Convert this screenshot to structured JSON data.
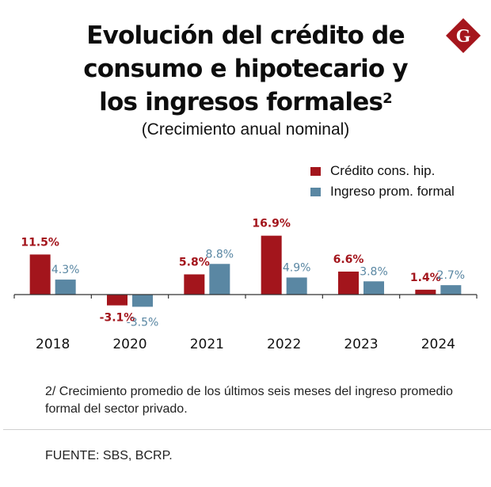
{
  "title": {
    "lines": [
      "Evolución del crédito de",
      "consumo e hipotecario y",
      "los ingresos formales"
    ],
    "superscript": "2"
  },
  "subtitle": "(Crecimiento anual nominal)",
  "logo": {
    "icon": "g-diamond-logo-icon",
    "letter": "G",
    "color": "#a5161d"
  },
  "colors": {
    "credito": "#a3151c",
    "ingreso": "#5a87a3",
    "axis": "#333333"
  },
  "chart_data": {
    "type": "bar",
    "title": "Evolución del crédito de consumo e hipotecario y los ingresos formales",
    "subtitle": "(Crecimiento anual nominal)",
    "xlabel": "",
    "ylabel": "",
    "categories": [
      "2018",
      "2020",
      "2021",
      "2022",
      "2023",
      "2024"
    ],
    "series": [
      {
        "name": "Crédito cons. hip.",
        "color": "#a3151c",
        "values": [
          11.5,
          -3.1,
          5.8,
          16.9,
          6.6,
          1.4
        ],
        "labels": [
          "11.5%",
          "-3.1%",
          "5.8%",
          "16.9%",
          "6.6%",
          "1.4%"
        ]
      },
      {
        "name": "Ingreso prom. formal",
        "color": "#5a87a3",
        "values": [
          4.3,
          -3.5,
          8.8,
          4.9,
          3.8,
          2.7
        ],
        "labels": [
          "4.3%",
          "-3.5%",
          "8.8%",
          "4.9%",
          "3.8%",
          "2.7%"
        ]
      }
    ],
    "ylim": [
      -3.5,
      16.9
    ],
    "grid": false,
    "legend": "top-right"
  },
  "footnote": "2/ Crecimiento promedio de los últimos seis meses del ingreso promedio formal del sector privado.",
  "source": "FUENTE: SBS, BCRP."
}
